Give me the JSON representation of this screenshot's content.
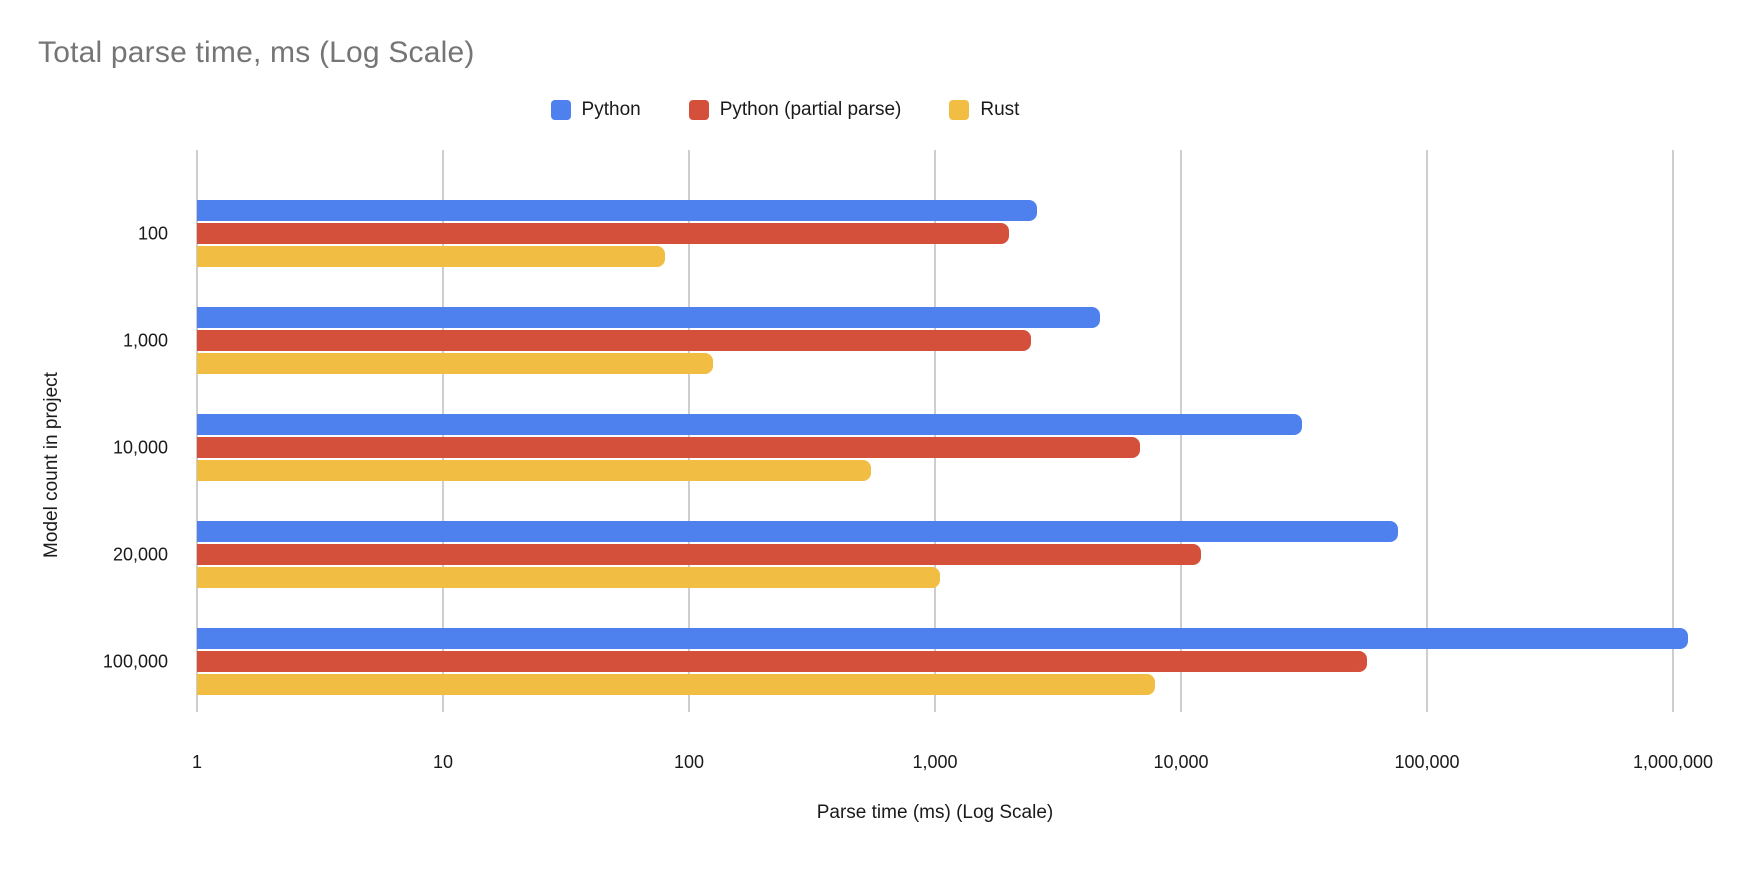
{
  "header": {
    "title": "Total parse time, ms (Log Scale)"
  },
  "legend": {
    "items": [
      {
        "label": "Python",
        "color": "#4E81EE"
      },
      {
        "label": "Python (partial parse)",
        "color": "#D5503B"
      },
      {
        "label": "Rust",
        "color": "#F1BD42"
      }
    ]
  },
  "axes": {
    "x_title": "Parse time (ms) (Log Scale)",
    "y_title": "Model count in project"
  },
  "chart_data": {
    "type": "bar",
    "orientation": "horizontal",
    "x_log_scale": true,
    "title": "Total parse time, ms (Log Scale)",
    "xlabel": "Parse time (ms) (Log Scale)",
    "ylabel": "Model count in project",
    "categories": [
      "100",
      "1,000",
      "10,000",
      "20,000",
      "100,000"
    ],
    "series": [
      {
        "name": "Python",
        "color": "#4E81EE",
        "values": [
          2600,
          4700,
          31000,
          76000,
          1150000
        ]
      },
      {
        "name": "Python (partial parse)",
        "color": "#D5503B",
        "values": [
          2000,
          2450,
          6800,
          12000,
          57000
        ]
      },
      {
        "name": "Rust",
        "color": "#F1BD42",
        "values": [
          80,
          125,
          550,
          1050,
          7800
        ]
      }
    ],
    "x_ticks": [
      "1",
      "10",
      "100",
      "1,000",
      "10,000",
      "100,000",
      "1,000,000"
    ],
    "x_tick_values": [
      1,
      10,
      100,
      1000,
      10000,
      100000,
      1000000
    ],
    "x_range_log10": [
      0,
      6
    ],
    "grid": true,
    "gridline_color": "#cecece",
    "legend_position": "top",
    "title_color": "#757575"
  }
}
